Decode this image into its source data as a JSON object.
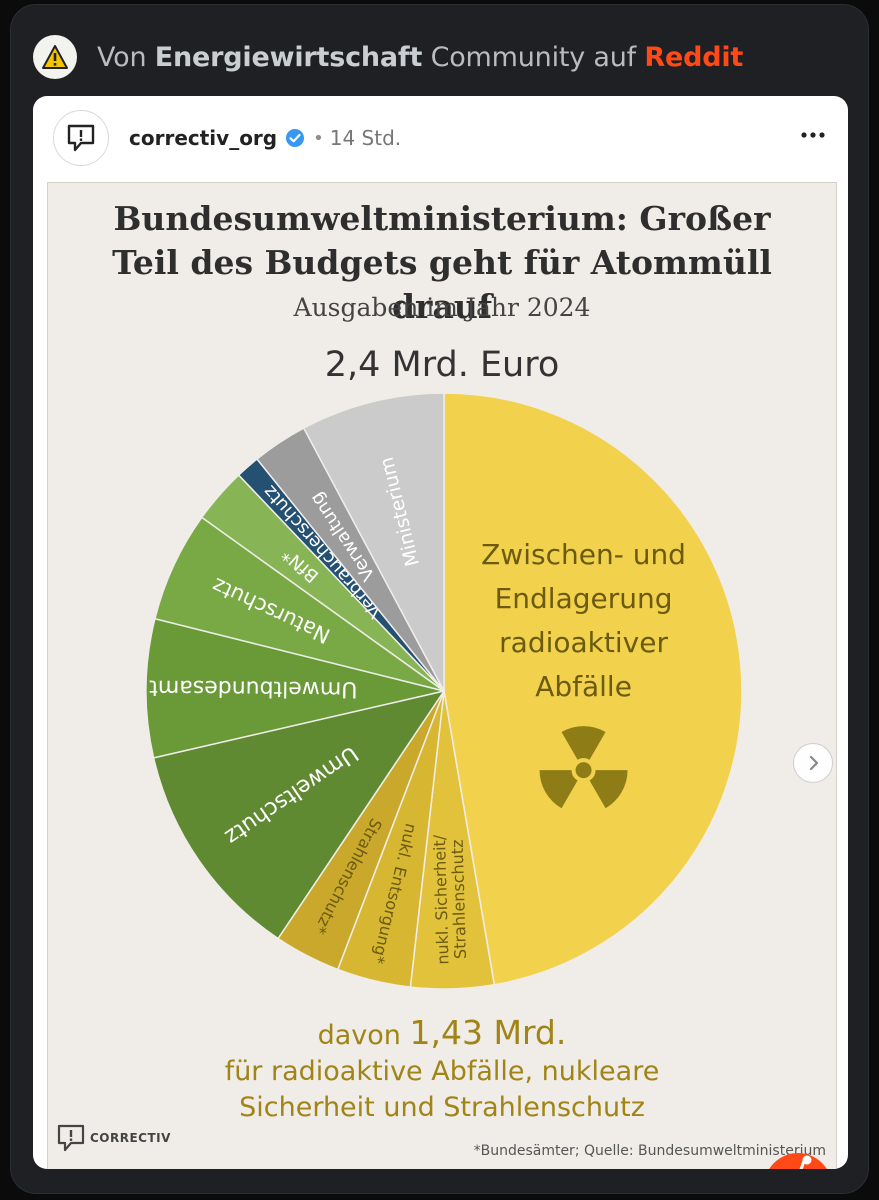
{
  "header": {
    "prefix": "Von",
    "community": "Energiewirtschaft",
    "middle": "Community auf",
    "platform": "Reddit",
    "icon": "warning-triangle-icon"
  },
  "post": {
    "account": "correctiv_org",
    "separator": "•",
    "time": "14 Std.",
    "more_icon": "more-horizontal-icon"
  },
  "graphic": {
    "title": "Bundesumweltministerium: Großer Teil des Budgets geht für Atommüll drauf",
    "subtitle": "Ausgaben im Jahr 2024",
    "total": "2,4 Mrd. Euro",
    "summary_prefix": "davon",
    "summary_value": "1,43 Mrd.",
    "summary_line1": "für radioaktive Abfälle, nukleare",
    "summary_line2": "Sicherheit und Strahlenschutz",
    "logo": "CORRECTIV",
    "source": "*Bundesämter; Quelle: Bundesumweltministerium"
  },
  "chart_data": {
    "type": "pie",
    "title": "Bundesumweltministerium: Großer Teil des Budgets geht für Atommüll drauf",
    "subtitle": "Ausgaben im Jahr 2024",
    "total_label": "2,4 Mrd. Euro",
    "slices": [
      {
        "label": "Zwischen- und Endlagerung radioaktiver Abfälle",
        "value": 0.473,
        "color": "#f2d24c"
      },
      {
        "label": "nukl. Sicherheit/ Strahlenschutz",
        "value": 0.045,
        "color": "#e2c23b"
      },
      {
        "label": "nukl. Entsorgung*",
        "value": 0.04,
        "color": "#d7b632"
      },
      {
        "label": "Strahlenschutz*",
        "value": 0.036,
        "color": "#c9a82b"
      },
      {
        "label": "Umweltschutz",
        "value": 0.12,
        "color": "#5f8a32"
      },
      {
        "label": "Umweltbundesamt",
        "value": 0.075,
        "color": "#6a9938"
      },
      {
        "label": "Naturschutz",
        "value": 0.06,
        "color": "#78a945"
      },
      {
        "label": "BfN*",
        "value": 0.03,
        "color": "#87b455"
      },
      {
        "label": "Verbraucherschutz",
        "value": 0.013,
        "color": "#245072"
      },
      {
        "label": "Verwaltung",
        "value": 0.03,
        "color": "#9c9c9c"
      },
      {
        "label": "Ministerium",
        "value": 0.078,
        "color": "#cbcbcb"
      }
    ],
    "text_colors": {
      "yellow_labels": "#6b5a10",
      "dark_labels": "#ffffff"
    }
  }
}
